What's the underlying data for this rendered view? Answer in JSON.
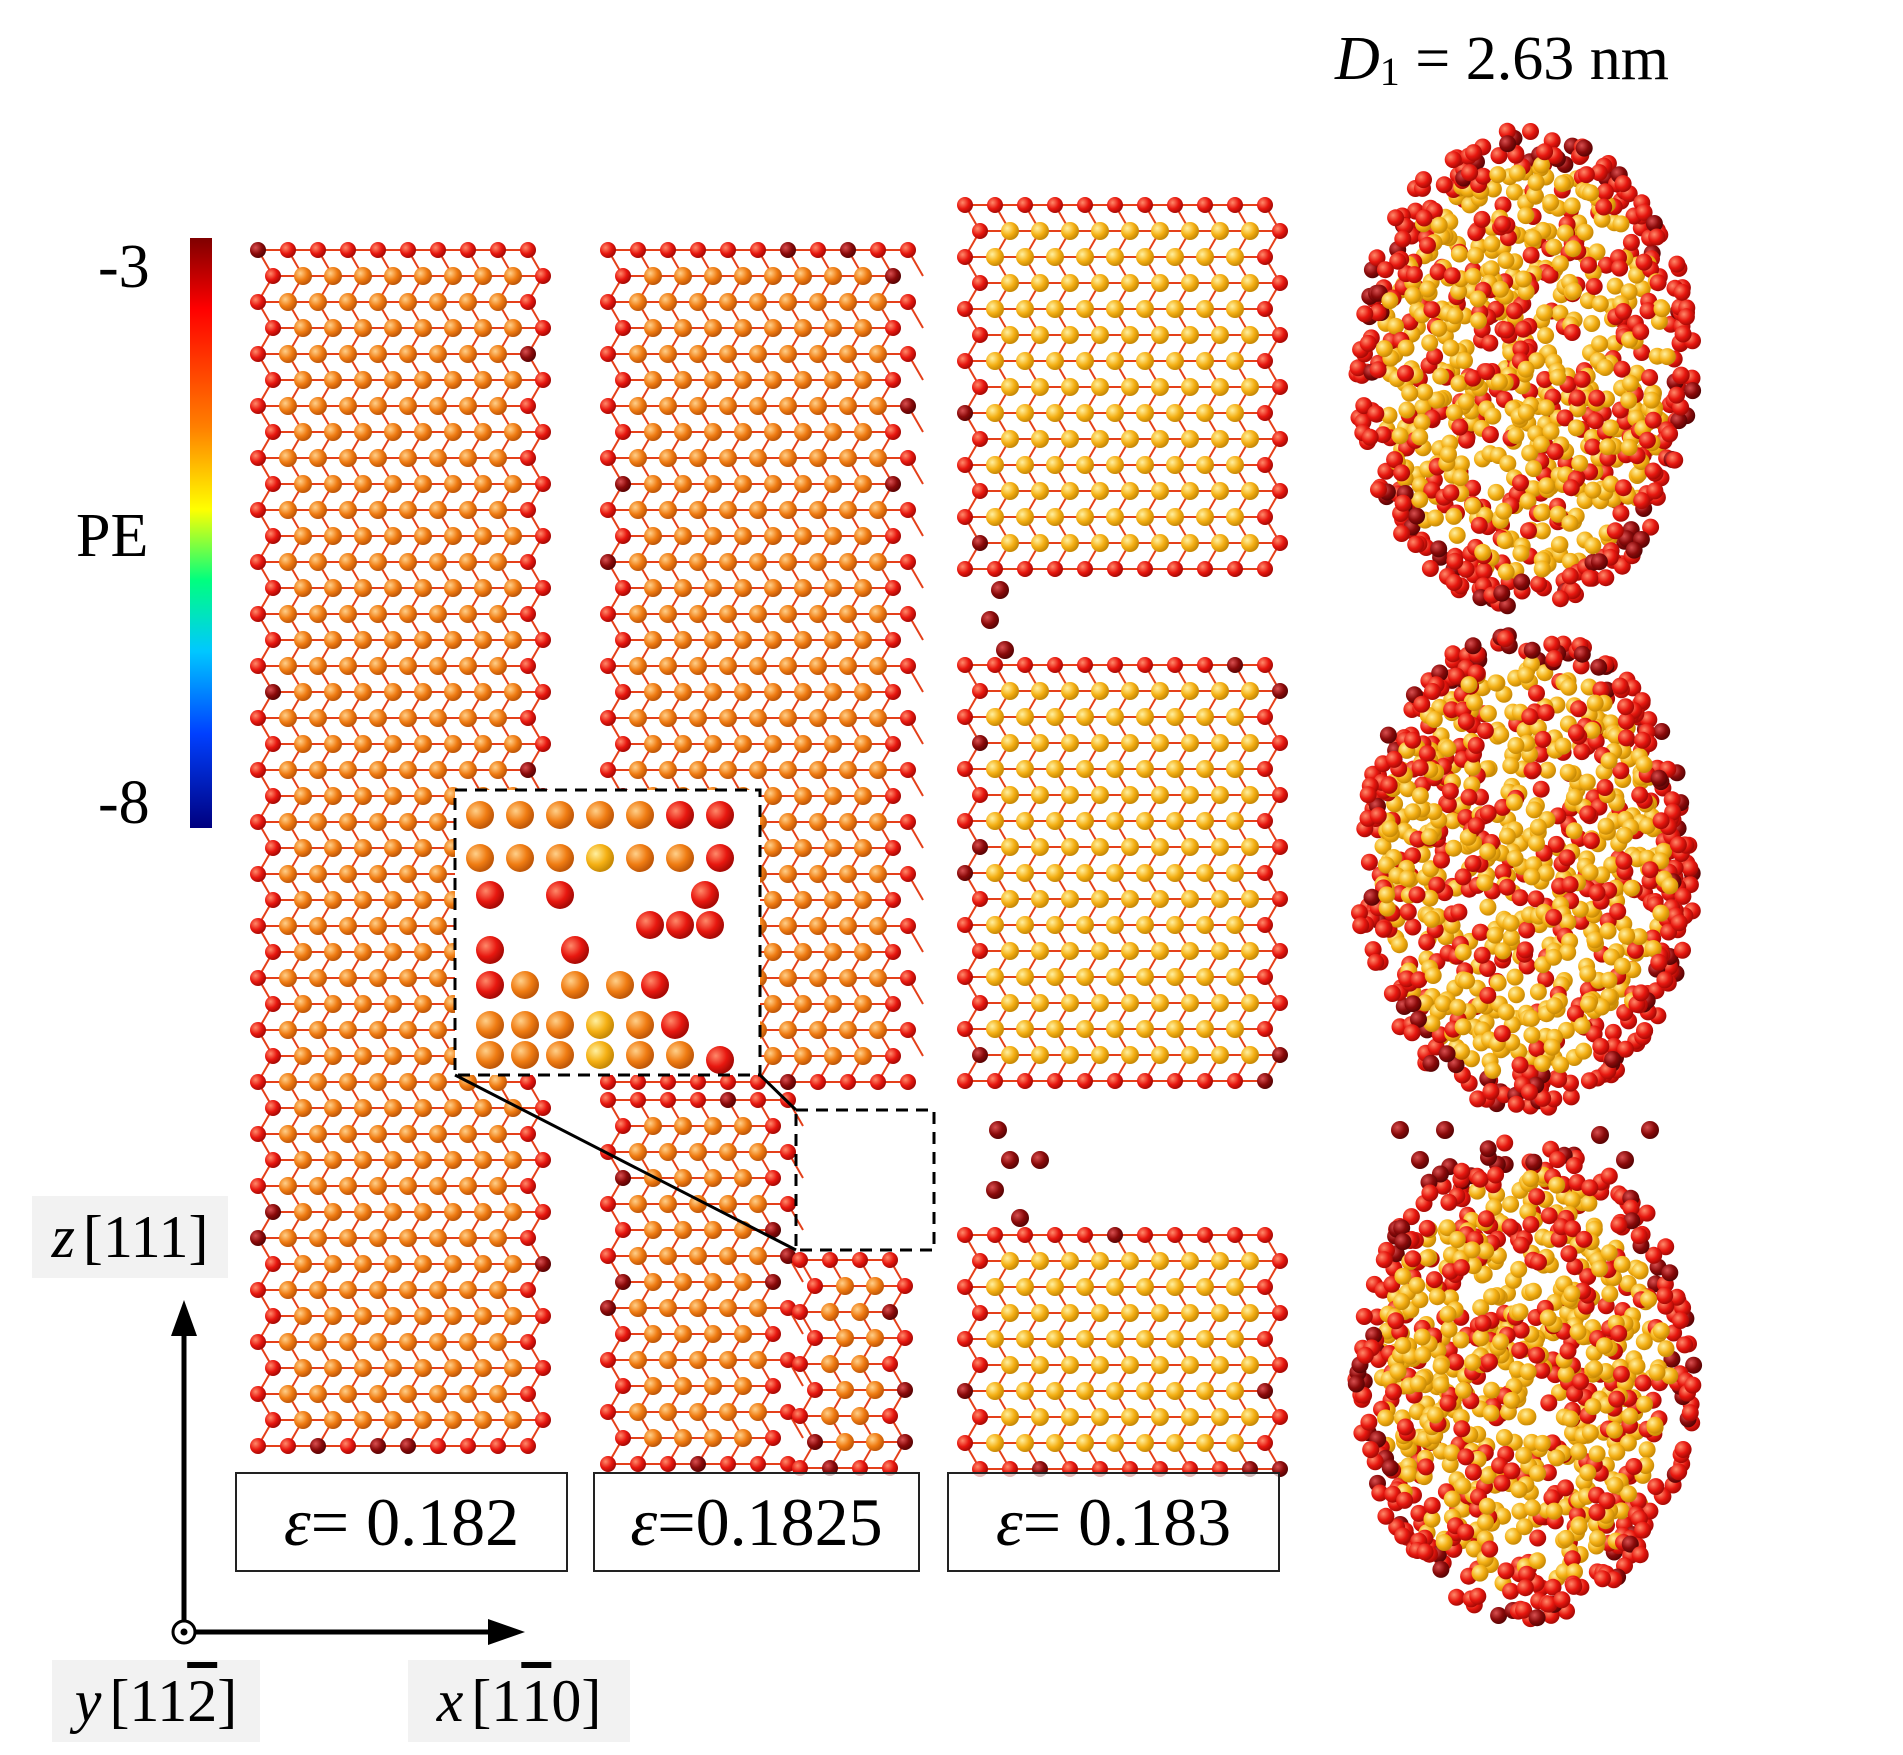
{
  "title": {
    "var": "D",
    "sub": "1",
    "rest": " = 2.63 nm"
  },
  "colorbar": {
    "label": "PE",
    "max_label": "-3",
    "min_label": "-8",
    "max": -3,
    "min": -8
  },
  "panels": [
    {
      "id": "a",
      "strain_symbol": "ε",
      "strain_text": " = 0.182",
      "strain": 0.182
    },
    {
      "id": "b",
      "strain_symbol": "ε",
      "strain_text": "=0.1825",
      "strain": 0.1825
    },
    {
      "id": "c",
      "strain_symbol": "ε",
      "strain_text": " = 0.183",
      "strain": 0.183
    }
  ],
  "axes": {
    "z": {
      "var": "z",
      "dir": "[111]"
    },
    "y": {
      "var": "y",
      "dir_pre": "[11",
      "dir_bar": "2",
      "dir_post": "]"
    },
    "x": {
      "var": "x",
      "dir_pre": "[1 ",
      "dir_bar": "1",
      "dir_post": " 0]"
    }
  },
  "colors": {
    "high_pe": "#e8170f",
    "mid_pe": "#f07c12",
    "low_pe": "#f5b014",
    "dark": "#8b0a0a",
    "bond": "#e4401a"
  }
}
